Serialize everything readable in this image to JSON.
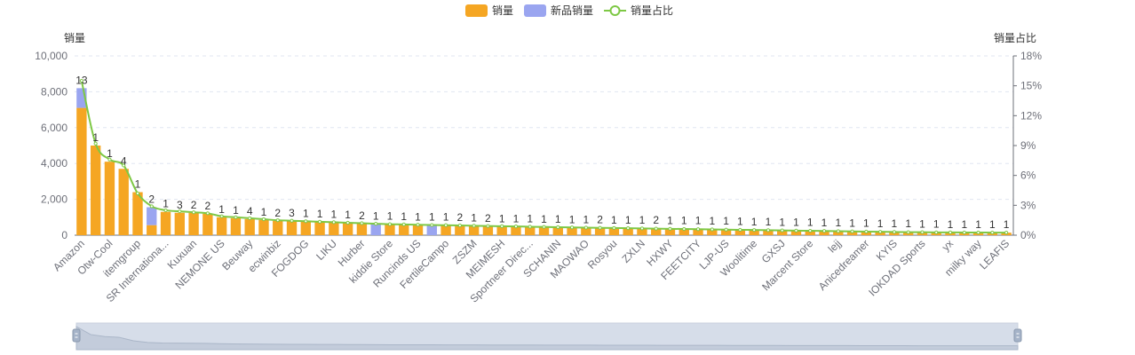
{
  "chart_data": {
    "type": "bar",
    "legend": {
      "placement": "top-center",
      "items": [
        {
          "name": "销量",
          "color": "#f5a623",
          "shape": "rect"
        },
        {
          "name": "新品销量",
          "color": "#9aa5f0",
          "shape": "rect"
        },
        {
          "name": "销量占比",
          "color": "#7ec845",
          "shape": "line-circle"
        }
      ]
    },
    "y_left": {
      "label": "销量",
      "min": 0,
      "max": 10000,
      "ticks": [
        "0",
        "2,000",
        "4,000",
        "6,000",
        "8,000",
        "10,000"
      ]
    },
    "y_right": {
      "label": "销量占比",
      "min": 0,
      "max": 18,
      "ticks": [
        "0%",
        "3%",
        "6%",
        "9%",
        "12%",
        "15%",
        "18%"
      ]
    },
    "grid": "dashed-horizontal",
    "categories": [
      "Amazon",
      "",
      "Otw-Cool",
      "",
      "itemgroup",
      "",
      "SR Internationa...",
      "",
      "Kuxuan",
      "",
      "NEMONE US",
      "",
      "Beuway",
      "",
      "ecwinbiz",
      "",
      "FOGDOG",
      "",
      "LIKU",
      "",
      "Hurber",
      "",
      "kiddie Store",
      "",
      "Runcinds US",
      "",
      "FertileCampo",
      "",
      "ZSZM",
      "",
      "MEIMESH",
      "",
      "Sportneer Direc...",
      "",
      "SCHANIN",
      "",
      "MAOWAO",
      "",
      "Rosyou",
      "",
      "ZXLN",
      "",
      "HXWY",
      "",
      "FEETCITY",
      "",
      "LJP-US",
      "",
      "Woolitime",
      "",
      "GXSJ",
      "",
      "Marcent Store",
      "",
      "lejj",
      "",
      "Anicedreamer",
      "",
      "KYIS",
      "",
      "IOKDAD Sports",
      "",
      "yx",
      "",
      "milky way",
      "",
      "LEAFIS"
    ],
    "series": [
      {
        "name": "销量",
        "color": "#f5a623",
        "stack": "sales",
        "values": [
          7100,
          5000,
          4100,
          3700,
          2400,
          560,
          1300,
          1250,
          1250,
          1200,
          1000,
          950,
          900,
          850,
          800,
          780,
          760,
          750,
          720,
          700,
          650,
          0,
          620,
          600,
          580,
          0,
          560,
          550,
          520,
          500,
          480,
          470,
          460,
          450,
          440,
          430,
          420,
          410,
          400,
          390,
          380,
          370,
          360,
          350,
          340,
          330,
          320,
          310,
          300,
          290,
          280,
          270,
          260,
          250,
          240,
          230,
          220,
          210,
          200,
          190,
          180,
          170,
          160,
          150,
          150,
          140,
          140
        ]
      },
      {
        "name": "新品销量",
        "color": "#9aa5f0",
        "stack": "sales",
        "values": [
          1100,
          0,
          0,
          0,
          0,
          1000,
          0,
          0,
          0,
          0,
          0,
          0,
          0,
          0,
          0,
          0,
          0,
          0,
          0,
          0,
          0,
          620,
          0,
          0,
          0,
          580,
          0,
          0,
          0,
          0,
          0,
          0,
          0,
          0,
          0,
          0,
          0,
          0,
          0,
          0,
          20,
          20,
          10,
          10,
          20,
          10,
          20,
          20,
          0,
          0,
          0,
          0,
          0,
          0,
          0,
          0,
          0,
          0,
          0,
          0,
          0,
          0,
          0,
          0,
          0,
          0,
          0
        ]
      },
      {
        "name": "销量占比",
        "color": "#7ec845",
        "axis": "right",
        "values": [
          15.5,
          9.2,
          7.6,
          7.0,
          4.2,
          2.9,
          2.5,
          2.4,
          2.3,
          2.2,
          1.9,
          1.8,
          1.7,
          1.6,
          1.5,
          1.45,
          1.4,
          1.35,
          1.3,
          1.25,
          1.2,
          1.15,
          1.1,
          1.08,
          1.05,
          1.02,
          1.0,
          0.98,
          0.95,
          0.92,
          0.9,
          0.88,
          0.85,
          0.83,
          0.8,
          0.78,
          0.76,
          0.74,
          0.72,
          0.7,
          0.68,
          0.66,
          0.64,
          0.62,
          0.6,
          0.58,
          0.56,
          0.54,
          0.52,
          0.5,
          0.48,
          0.46,
          0.44,
          0.42,
          0.4,
          0.38,
          0.36,
          0.34,
          0.32,
          0.3,
          0.3,
          0.28,
          0.28,
          0.27,
          0.27,
          0.26,
          0.26
        ]
      }
    ],
    "data_labels": [
      "13",
      "1",
      "1",
      "4",
      "1",
      "2",
      "1",
      "3",
      "2",
      "2",
      "1",
      "1",
      "4",
      "1",
      "2",
      "3",
      "1",
      "1",
      "1",
      "1",
      "2",
      "1",
      "1",
      "1",
      "1",
      "1",
      "1",
      "2",
      "1",
      "2",
      "1",
      "1",
      "1",
      "1",
      "1",
      "1",
      "1",
      "2",
      "1",
      "1",
      "1",
      "2",
      "1",
      "1",
      "1",
      "1",
      "1",
      "1",
      "1",
      "1",
      "1",
      "1",
      "1",
      "1",
      "1",
      "1",
      "1",
      "1",
      "1",
      "1",
      "1",
      "1",
      "1",
      "1",
      "1",
      "1",
      "1"
    ]
  }
}
